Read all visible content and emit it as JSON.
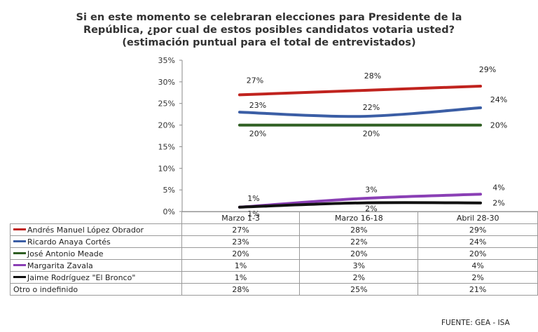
{
  "title_lines": [
    "Si en este momento se celebraran elecciones para Presidente de la",
    "República, ¿por cual de estos posibles candidatos votaria usted?",
    "(estimación puntual para el total de entrevistados)"
  ],
  "source": "FUENTE: GEA - ISA",
  "chart_data": {
    "type": "line",
    "title": "Si en este momento se celebraran elecciones para Presidente de la República, ¿por cual de estos posibles candidatos votaria usted? (estimación puntual para el total de entrevistados)",
    "categories": [
      "Marzo 1-3",
      "Marzo 16-18",
      "Abril 28-30"
    ],
    "ylim": [
      0,
      35
    ],
    "yticks": [
      0,
      5,
      10,
      15,
      20,
      25,
      30,
      35
    ],
    "ytick_labels": [
      "0%",
      "5%",
      "10%",
      "15%",
      "20%",
      "25%",
      "30%",
      "35%"
    ],
    "series": [
      {
        "name": "Andrés Manuel López Obrador",
        "values": [
          27,
          28,
          29
        ],
        "labels": [
          "27%",
          "28%",
          "29%"
        ],
        "color": "#c0231e",
        "plotted": true
      },
      {
        "name": "Ricardo Anaya Cortés",
        "values": [
          23,
          22,
          24
        ],
        "labels": [
          "23%",
          "22%",
          "24%"
        ],
        "color": "#3b5ea5",
        "plotted": true
      },
      {
        "name": "José Antonio Meade",
        "values": [
          20,
          20,
          20
        ],
        "labels": [
          "20%",
          "20%",
          "20%"
        ],
        "color": "#2e5e22",
        "plotted": true
      },
      {
        "name": "Margarita Zavala",
        "values": [
          1,
          3,
          4
        ],
        "labels": [
          "1%",
          "3%",
          "4%"
        ],
        "color": "#8a3fb5",
        "plotted": true
      },
      {
        "name": "Jaime Rodríguez \"El Bronco\"",
        "values": [
          1,
          2,
          2
        ],
        "labels": [
          "1%",
          "2%",
          "2%"
        ],
        "color": "#111111",
        "plotted": true
      },
      {
        "name": "Otro o indefinido",
        "values": [
          28,
          25,
          21
        ],
        "labels": [
          "28%",
          "25%",
          "21%"
        ],
        "color": "",
        "plotted": false
      }
    ]
  }
}
